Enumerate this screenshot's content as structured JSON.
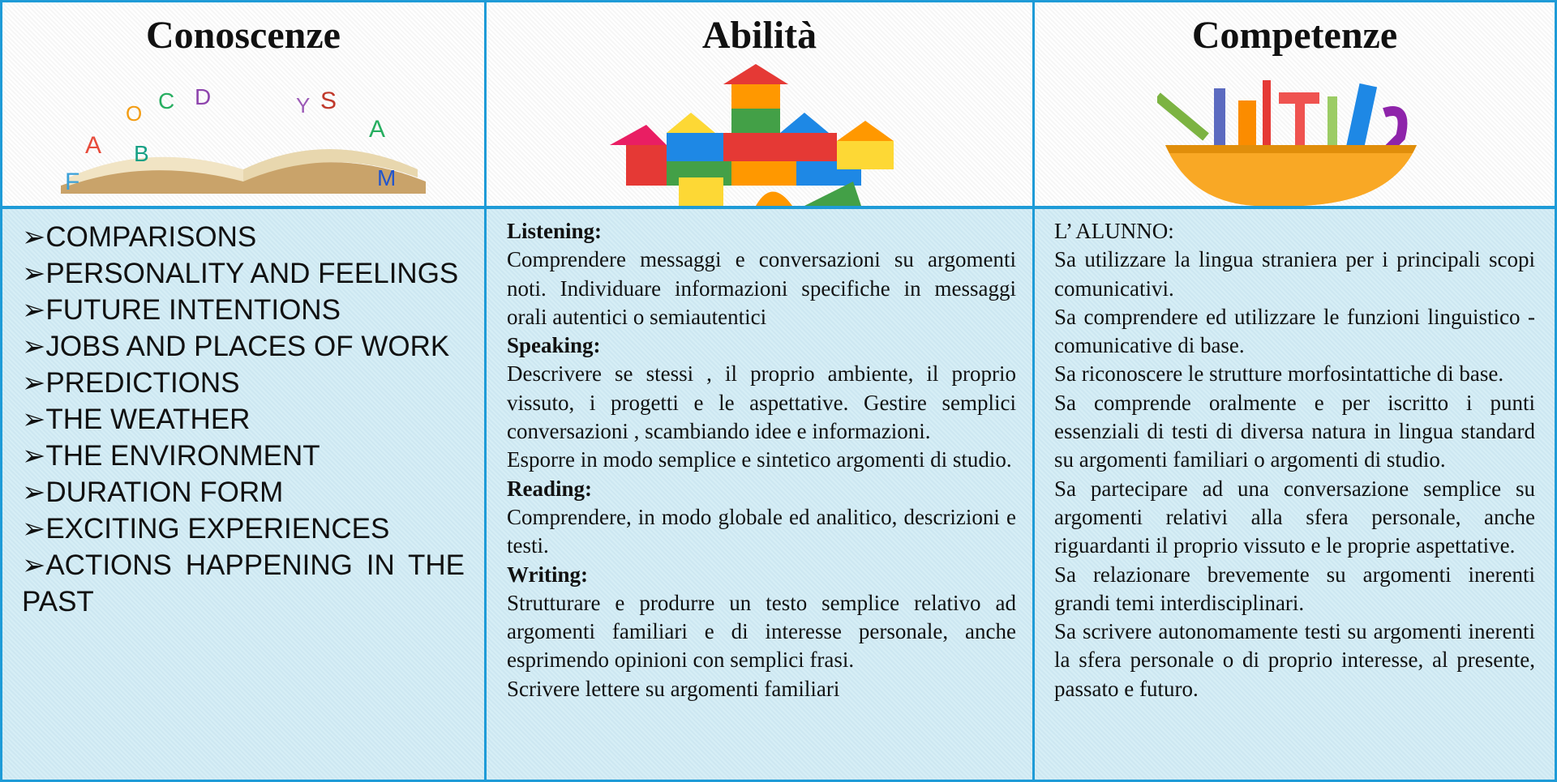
{
  "table": {
    "headers": [
      "Conoscenze",
      "Abilità",
      "Competenze"
    ],
    "conoscenze": [
      "COMPARISONS",
      "PERSONALITY AND FEELINGS",
      "FUTURE INTENTIONS",
      "JOBS AND PLACES OF WORK",
      "PREDICTIONS",
      "THE WEATHER",
      "THE ENVIRONMENT",
      "DURATION FORM",
      "EXCITING EXPERIENCES",
      "ACTIONS HAPPENING IN THE PAST"
    ],
    "abilita": [
      {
        "heading": "Listening:",
        "paragraphs": [
          "Comprendere messaggi e conversazioni su argomenti noti. Individuare informazioni specifiche in messaggi orali autentici o semiautentici"
        ]
      },
      {
        "heading": "Speaking:",
        "paragraphs": [
          "Descrivere se stessi , il proprio ambiente, il proprio vissuto, i progetti e le aspettative. Gestire semplici conversazioni , scambiando idee e informazioni.",
          "Esporre in modo semplice e sintetico argomenti di studio."
        ]
      },
      {
        "heading": "Reading:",
        "paragraphs": [
          "Comprendere, in modo globale ed analitico, descrizioni e testi."
        ]
      },
      {
        "heading": "Writing:",
        "paragraphs": [
          "Strutturare e produrre un testo semplice relativo ad argomenti familiari e di interesse personale, anche esprimendo opinioni con semplici frasi.",
          "Scrivere lettere su argomenti familiari"
        ]
      }
    ],
    "competenze": {
      "intro": "L’ ALUNNO:",
      "paragraphs": [
        "Sa utilizzare la lingua straniera per i principali scopi comunicativi.",
        "Sa comprendere ed utilizzare le funzioni linguistico - comunicative di base.",
        "Sa riconoscere le strutture morfosintattiche di base.",
        "Sa comprende oralmente e per iscritto i punti essenziali di testi di diversa natura in lingua standard su argomenti familiari o argomenti di studio.",
        "Sa partecipare ad una conversazione semplice su argomenti relativi alla sfera personale, anche riguardanti il proprio vissuto e le proprie aspettative.",
        "Sa relazionare brevemente su argomenti inerenti grandi temi interdisciplinari.",
        "Sa scrivere autonomamente testi su argomenti inerenti la sfera personale o di proprio interesse, al presente, passato e futuro."
      ]
    }
  }
}
